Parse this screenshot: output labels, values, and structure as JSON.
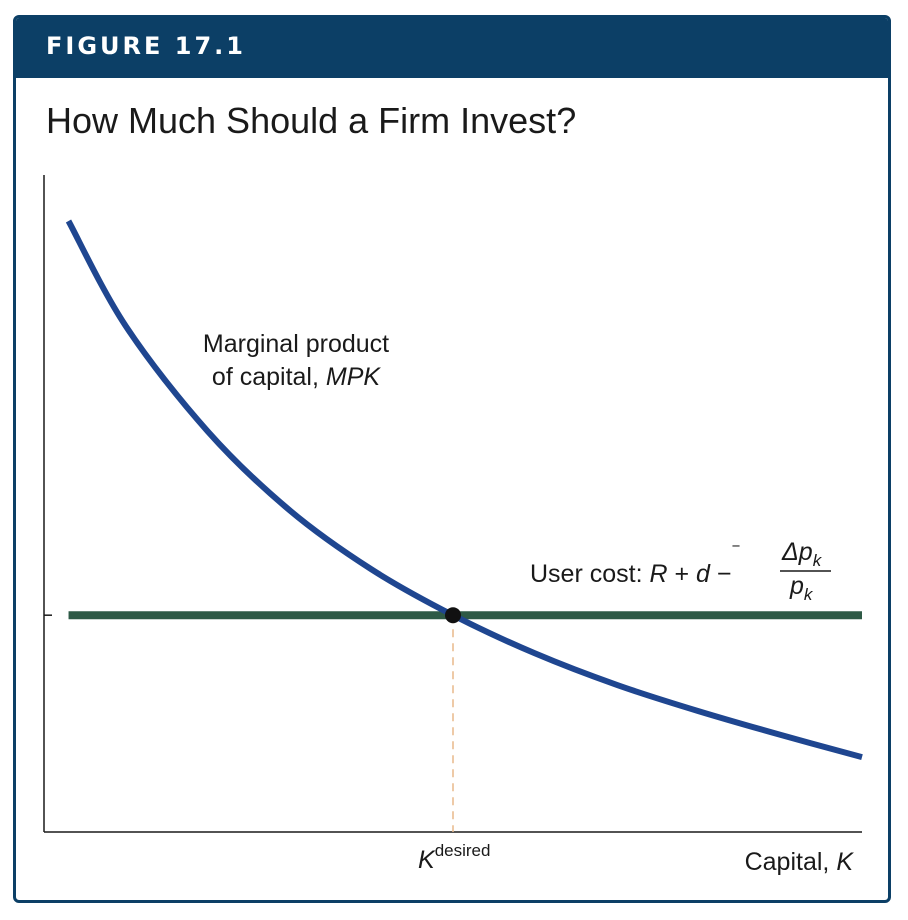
{
  "figure": {
    "label": "FIGURE 17.1",
    "title": "How Much Should a Firm Invest?"
  },
  "colors": {
    "header_bg": "#0c3f66",
    "mpk_curve": "#1f4690",
    "user_cost_line": "#2e5a46",
    "guide_line": "#e8b98a",
    "axis": "#1a1a1a"
  },
  "chart_data": {
    "type": "line",
    "title": "How Much Should a Firm Invest?",
    "xlabel": "Capital, K",
    "ylabel": "",
    "grid": false,
    "x_range": [
      0,
      100
    ],
    "y_range": [
      0,
      100
    ],
    "series": [
      {
        "name": "Marginal product of capital, MPK",
        "kind": "downward-sloping curve",
        "x": [
          3,
          10,
          20,
          30,
          40,
          50,
          60,
          70,
          80,
          90,
          100
        ],
        "y": [
          93,
          77,
          61,
          49,
          40,
          33,
          27.2,
          22.4,
          18.4,
          14.8,
          11.4
        ]
      },
      {
        "name": "User cost",
        "kind": "horizontal line",
        "x": [
          3,
          100
        ],
        "y": [
          33,
          33
        ]
      }
    ],
    "annotations": {
      "mpk_label_line1": "Marginal product",
      "mpk_label_line2_prefix": "of capital, ",
      "mpk_label_line2_italic": "MPK",
      "user_cost_prefix": "User cost: ",
      "user_cost_R": "R",
      "user_cost_plus": " + ",
      "user_cost_d": "d",
      "user_cost_dbar": "‾",
      "user_cost_minus": " − ",
      "user_cost_numerator": "Δp",
      "user_cost_denominator": "p",
      "user_cost_subscript": "k",
      "x_tick_base": "K",
      "x_tick_superscript": "desired",
      "xlabel_prefix": "Capital, ",
      "xlabel_italic": "K"
    },
    "equilibrium": {
      "x": 50,
      "y": 33,
      "label": "K desired"
    }
  }
}
